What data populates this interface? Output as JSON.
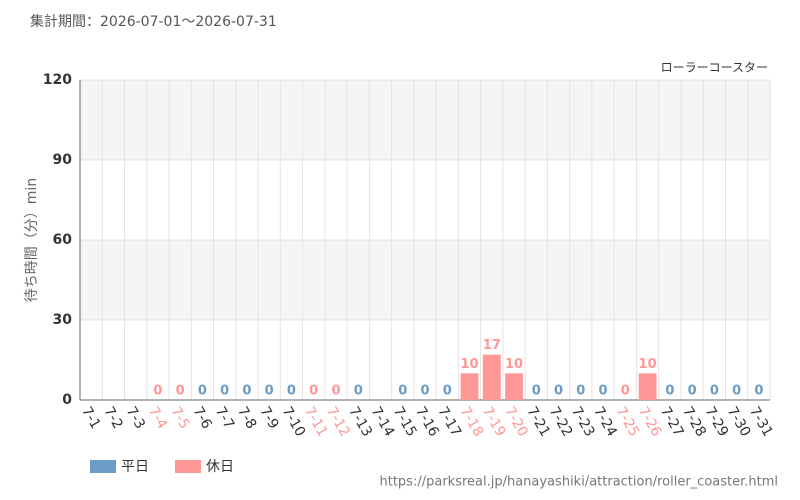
{
  "chart_data": {
    "type": "bar",
    "title": "集計期間：2026-07-01～2026-07-31",
    "subtitle": "ローラーコースター",
    "y_label": "待ち時間（分）min",
    "source": "https://parksreal.jp/hanayashiki/attraction/roller_coaster.html",
    "categories": [
      "7-1",
      "7-2",
      "7-3",
      "7-4",
      "7-5",
      "7-6",
      "7-7",
      "7-8",
      "7-9",
      "7-10",
      "7-11",
      "7-12",
      "7-13",
      "7-14",
      "7-15",
      "7-16",
      "7-17",
      "7-18",
      "7-19",
      "7-20",
      "7-21",
      "7-22",
      "7-23",
      "7-24",
      "7-25",
      "7-26",
      "7-27",
      "7-28",
      "7-29",
      "7-30",
      "7-31"
    ],
    "series": [
      {
        "name": "平日",
        "color": "#6a9cc6",
        "values": [
          null,
          null,
          null,
          null,
          null,
          0,
          0,
          0,
          0,
          0,
          null,
          null,
          0,
          null,
          0,
          0,
          0,
          null,
          null,
          null,
          0,
          0,
          0,
          0,
          null,
          null,
          0,
          0,
          0,
          0,
          0
        ]
      },
      {
        "name": "休日",
        "color": "#ff9797",
        "values": [
          null,
          null,
          null,
          0,
          0,
          null,
          null,
          null,
          null,
          null,
          0,
          0,
          null,
          null,
          null,
          null,
          null,
          10,
          17,
          10,
          null,
          null,
          null,
          null,
          0,
          10,
          null,
          null,
          null,
          null,
          null
        ]
      }
    ],
    "ylim": [
      0,
      120
    ],
    "yticks": [
      0,
      30,
      60,
      90,
      120
    ],
    "grid": true
  }
}
